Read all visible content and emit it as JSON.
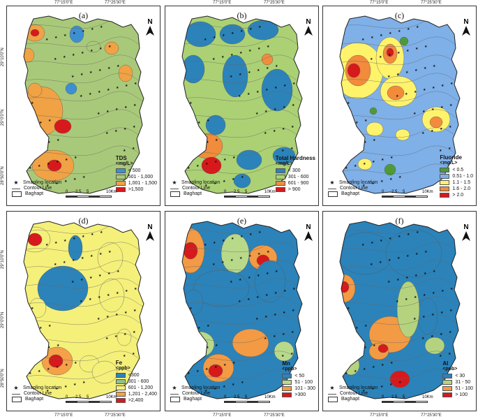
{
  "coords": {
    "top_left": "77°15'0\"E",
    "top_right": "77°25'30\"E",
    "bottom_left": "77°15'0\"E",
    "bottom_right": "77°25'30\"E",
    "lat_top": "29°10'0\"N",
    "lat_mid": "29°0'0\"N",
    "lat_bottom": "28°50'0\"N"
  },
  "common": {
    "sampling_location": "Smapling location",
    "contour_line": "Contour Line",
    "boundary": "Baghapt",
    "north": "N",
    "scale_ticks": [
      "0",
      "2.5",
      "5",
      "10Km"
    ]
  },
  "panels": [
    {
      "id": "a",
      "label": "(a)",
      "title": "TDS",
      "unit": "<mg/L>",
      "classes": [
        {
          "label": "< 500",
          "color": "#3d8fd1"
        },
        {
          "label": "501 - 1,000",
          "color": "#a9c97a"
        },
        {
          "label": "1,001 - 1,500",
          "color": "#f0a244"
        },
        {
          "label": ">1,500",
          "color": "#d7191c"
        }
      ]
    },
    {
      "id": "b",
      "label": "(b)",
      "title": "Total Hardness",
      "unit": "<mg/L>",
      "classes": [
        {
          "label": "< 300",
          "color": "#2b83ba"
        },
        {
          "label": "301 - 600",
          "color": "#abd174"
        },
        {
          "label": "601 - 900",
          "color": "#f08c3c"
        },
        {
          "label": "> 900",
          "color": "#d7191c"
        }
      ]
    },
    {
      "id": "c",
      "label": "(c)",
      "title": "Fluoride",
      "unit": "<mg/L>",
      "classes": [
        {
          "label": "< 0.5",
          "color": "#4e9a3a"
        },
        {
          "label": "0.51 - 1.0",
          "color": "#7fb0e8"
        },
        {
          "label": "1.1 - 1.5",
          "color": "#fff36b"
        },
        {
          "label": "1.6 - 2.0",
          "color": "#f28b3c"
        },
        {
          "label": "> 2.0",
          "color": "#d7191c"
        }
      ]
    },
    {
      "id": "d",
      "label": "(d)",
      "title": "Fe",
      "unit": "<ppb>",
      "classes": [
        {
          "label": "<300",
          "color": "#2b83ba"
        },
        {
          "label": "301 - 600",
          "color": "#91bf8f"
        },
        {
          "label": "601 - 1,200",
          "color": "#f5f07a"
        },
        {
          "label": "1,201 - 2,400",
          "color": "#f4a148"
        },
        {
          "label": ">2,400",
          "color": "#d7191c"
        }
      ]
    },
    {
      "id": "e",
      "label": "(e)",
      "title": "Mn",
      "unit": "<ppb>",
      "classes": [
        {
          "label": "< 50",
          "color": "#2b83ba"
        },
        {
          "label": "51 - 100",
          "color": "#b8d98a"
        },
        {
          "label": "101 - 300",
          "color": "#f29a44"
        },
        {
          "label": ">300",
          "color": "#d7191c"
        }
      ]
    },
    {
      "id": "f",
      "label": "(f)",
      "title": "Al",
      "unit": "<ppb>",
      "classes": [
        {
          "label": "< 30",
          "color": "#2b83ba"
        },
        {
          "label": "31 - 50",
          "color": "#b5d37e"
        },
        {
          "label": "51 - 100",
          "color": "#f29a44"
        },
        {
          "label": "> 100",
          "color": "#d7191c"
        }
      ]
    }
  ]
}
